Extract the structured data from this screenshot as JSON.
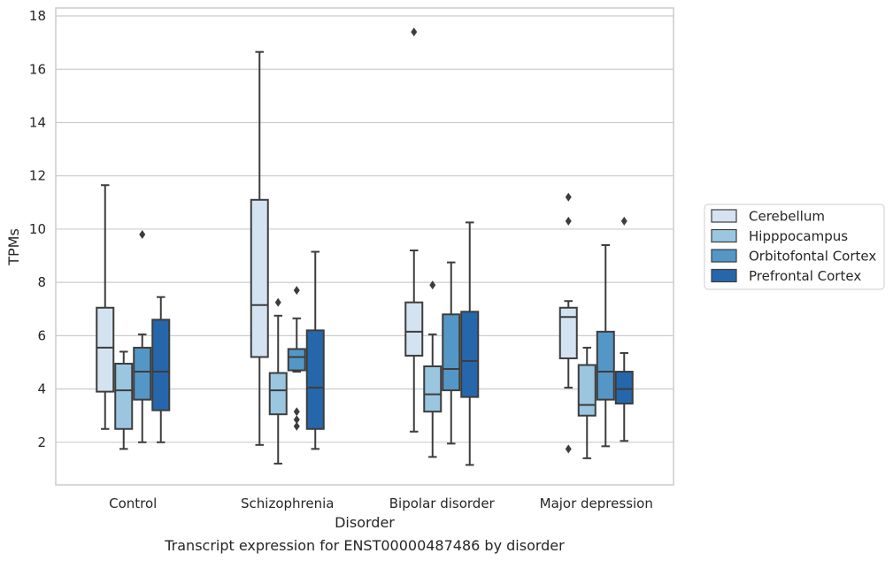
{
  "chart_data": {
    "type": "box",
    "title": "",
    "caption": "Transcript expression for ENST00000487486 by disorder",
    "xlabel": "Disorder",
    "ylabel": "TPMs",
    "ylim": [
      0.4,
      18.3
    ],
    "yticks": [
      2,
      4,
      6,
      8,
      10,
      12,
      14,
      16,
      18
    ],
    "grid": "horizontal",
    "legend_position": "right",
    "categories": [
      "Control",
      "Schizophrenia",
      "Bipolar disorder",
      "Major depression"
    ],
    "series": [
      {
        "name": "Cerebellum",
        "color": "#d4e3f2",
        "boxes": [
          {
            "min": 2.5,
            "q1": 3.9,
            "median": 5.55,
            "q3": 7.05,
            "max": 11.65,
            "outliers": []
          },
          {
            "min": 1.9,
            "q1": 5.2,
            "median": 7.15,
            "q3": 11.1,
            "max": 16.65,
            "outliers": []
          },
          {
            "min": 2.4,
            "q1": 5.25,
            "median": 6.15,
            "q3": 7.25,
            "max": 9.2,
            "outliers": [
              17.4
            ]
          },
          {
            "min": 4.05,
            "q1": 5.15,
            "median": 6.7,
            "q3": 7.05,
            "max": 7.3,
            "outliers": [
              1.75,
              10.3,
              11.2
            ]
          }
        ]
      },
      {
        "name": "Hipppocampus",
        "color": "#9ac6e0",
        "boxes": [
          {
            "min": 1.75,
            "q1": 2.5,
            "median": 3.95,
            "q3": 4.95,
            "max": 5.4,
            "outliers": []
          },
          {
            "min": 1.2,
            "q1": 3.05,
            "median": 3.95,
            "q3": 4.6,
            "max": 6.75,
            "outliers": [
              7.25
            ]
          },
          {
            "min": 1.45,
            "q1": 3.15,
            "median": 3.8,
            "q3": 4.85,
            "max": 6.05,
            "outliers": [
              7.9
            ]
          },
          {
            "min": 1.4,
            "q1": 3.0,
            "median": 3.4,
            "q3": 4.9,
            "max": 5.55,
            "outliers": []
          }
        ]
      },
      {
        "name": "Orbitofontal Cortex",
        "color": "#5497c6",
        "boxes": [
          {
            "min": 2.0,
            "q1": 3.6,
            "median": 4.65,
            "q3": 5.55,
            "max": 6.05,
            "outliers": [
              9.8
            ]
          },
          {
            "min": 4.65,
            "q1": 4.7,
            "median": 5.2,
            "q3": 5.5,
            "max": 6.65,
            "outliers": [
              2.6,
              2.85,
              3.15,
              7.7
            ]
          },
          {
            "min": 1.95,
            "q1": 3.95,
            "median": 4.75,
            "q3": 6.8,
            "max": 8.75,
            "outliers": []
          },
          {
            "min": 1.85,
            "q1": 3.6,
            "median": 4.65,
            "q3": 6.15,
            "max": 9.4,
            "outliers": []
          }
        ]
      },
      {
        "name": "Prefrontal Cortex",
        "color": "#2667ab",
        "boxes": [
          {
            "min": 2.0,
            "q1": 3.2,
            "median": 4.65,
            "q3": 6.6,
            "max": 7.45,
            "outliers": []
          },
          {
            "min": 1.75,
            "q1": 2.5,
            "median": 4.05,
            "q3": 6.2,
            "max": 9.15,
            "outliers": []
          },
          {
            "min": 1.15,
            "q1": 3.7,
            "median": 5.05,
            "q3": 6.9,
            "max": 10.25,
            "outliers": []
          },
          {
            "min": 2.05,
            "q1": 3.45,
            "median": 4.0,
            "q3": 4.65,
            "max": 5.35,
            "outliers": [
              10.3
            ]
          }
        ]
      }
    ]
  }
}
